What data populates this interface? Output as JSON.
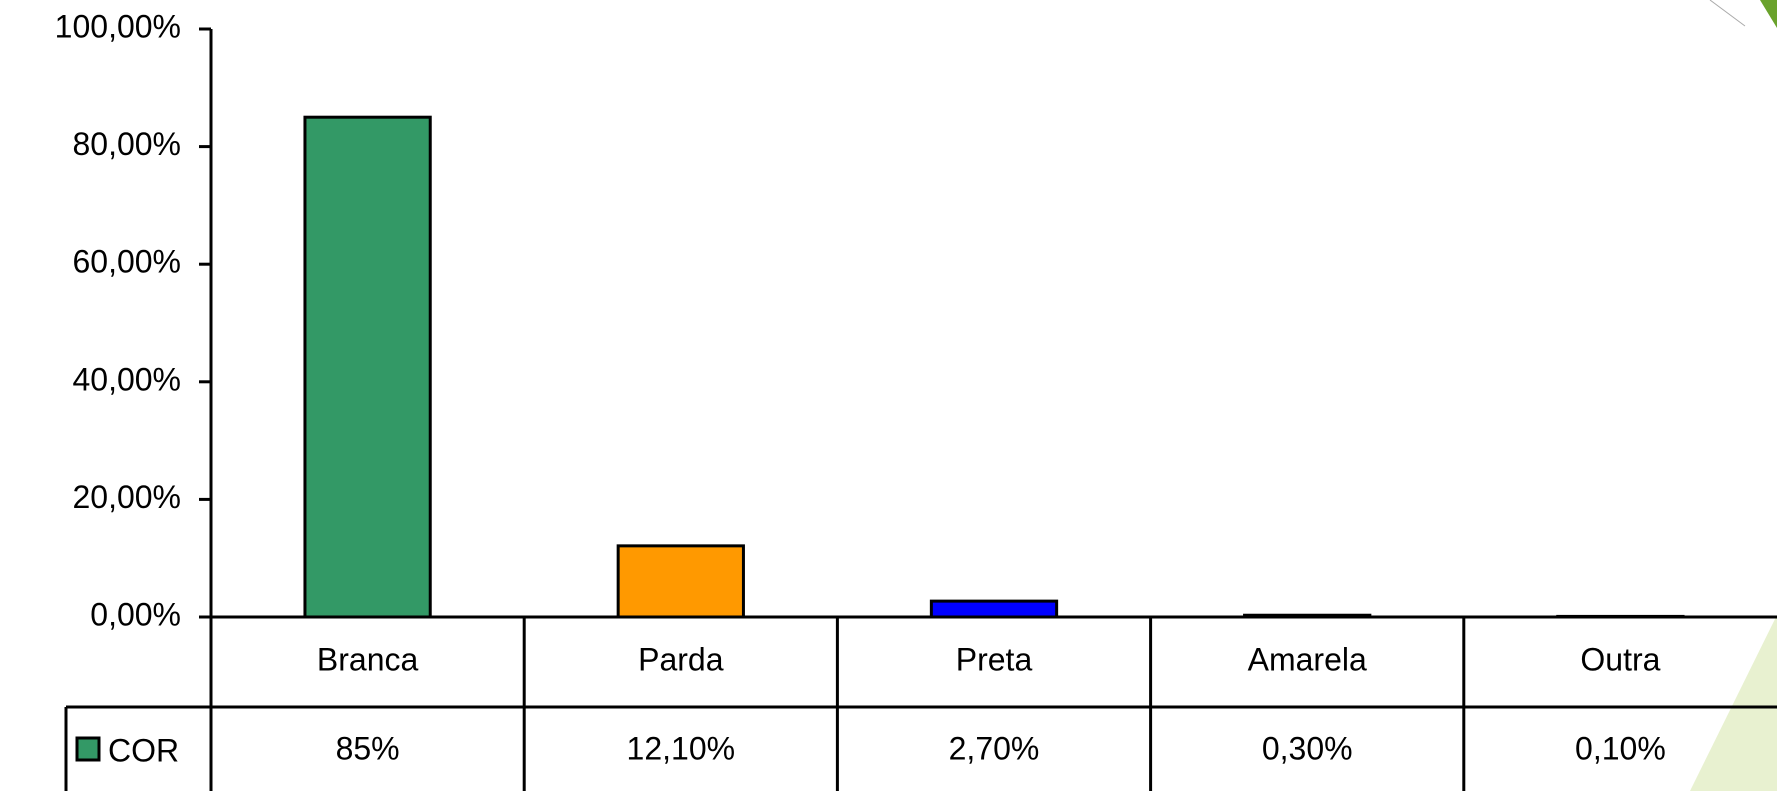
{
  "chart_data": {
    "type": "bar",
    "categories": [
      "Branca",
      "Parda",
      "Preta",
      "Amarela",
      "Outra"
    ],
    "series": [
      {
        "name": "COR",
        "color": "#339966",
        "bar_colors": [
          "#339966",
          "#ff9900",
          "#0000ff",
          "#ffff00",
          "#808080"
        ],
        "values": [
          85,
          12.1,
          2.7,
          0.3,
          0.1
        ],
        "value_labels": [
          "85%",
          "12,10%",
          "2,70%",
          "0,30%",
          "0,10%"
        ]
      }
    ],
    "ylim": [
      0,
      100
    ],
    "yticks": [
      {
        "value": 0,
        "label": "0,00%"
      },
      {
        "value": 20,
        "label": "20,00%"
      },
      {
        "value": 40,
        "label": "40,00%"
      },
      {
        "value": 60,
        "label": "60,00%"
      },
      {
        "value": 80,
        "label": "80,00%"
      },
      {
        "value": 100,
        "label": "100,00%"
      }
    ],
    "data_table": true
  }
}
